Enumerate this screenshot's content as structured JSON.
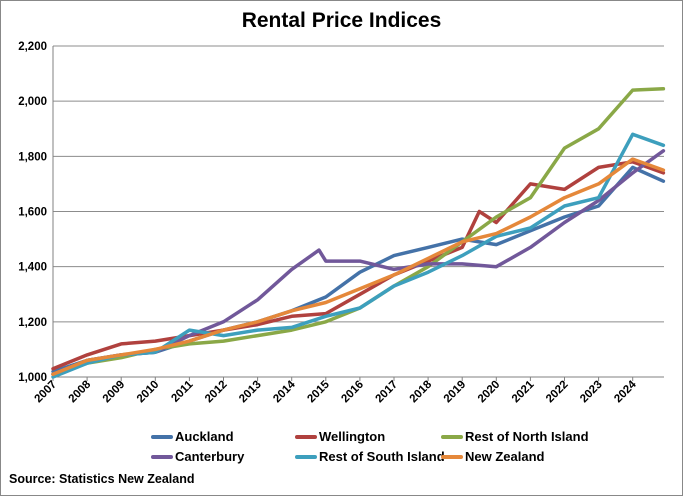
{
  "chart_data": {
    "type": "line",
    "title": "Rental Price Indices",
    "xlabel": "",
    "ylabel": "",
    "ylim": [
      1000,
      2200
    ],
    "yticks": [
      "1,000",
      "1,200",
      "1,400",
      "1,600",
      "1,800",
      "2,000",
      "2,200"
    ],
    "xlim": [
      2007,
      2024.9
    ],
    "xticks": [
      "2007",
      "2008",
      "2009",
      "2010",
      "2011",
      "2012",
      "2013",
      "2014",
      "2015",
      "2016",
      "2017",
      "2018",
      "2019",
      "2020",
      "2021",
      "2022",
      "2023",
      "2024"
    ],
    "grid": "horizontal",
    "legend_position": "bottom",
    "source": "Source:  Statistics New Zealand",
    "series": [
      {
        "name": "Auckland",
        "color": "#4472a8",
        "points": [
          [
            2007,
            1020
          ],
          [
            2008,
            1060
          ],
          [
            2009,
            1080
          ],
          [
            2010,
            1090
          ],
          [
            2011,
            1130
          ],
          [
            2012,
            1170
          ],
          [
            2013,
            1200
          ],
          [
            2014,
            1240
          ],
          [
            2015,
            1290
          ],
          [
            2016,
            1380
          ],
          [
            2017,
            1440
          ],
          [
            2018,
            1470
          ],
          [
            2019,
            1500
          ],
          [
            2020,
            1480
          ],
          [
            2021,
            1530
          ],
          [
            2022,
            1580
          ],
          [
            2023,
            1620
          ],
          [
            2024,
            1760
          ],
          [
            2024.9,
            1710
          ]
        ]
      },
      {
        "name": "Wellington",
        "color": "#b0413e",
        "points": [
          [
            2007,
            1030
          ],
          [
            2008,
            1080
          ],
          [
            2009,
            1120
          ],
          [
            2010,
            1130
          ],
          [
            2011,
            1150
          ],
          [
            2012,
            1170
          ],
          [
            2013,
            1190
          ],
          [
            2014,
            1220
          ],
          [
            2015,
            1230
          ],
          [
            2016,
            1300
          ],
          [
            2017,
            1370
          ],
          [
            2018,
            1420
          ],
          [
            2019,
            1470
          ],
          [
            2019.5,
            1600
          ],
          [
            2020,
            1560
          ],
          [
            2021,
            1700
          ],
          [
            2022,
            1680
          ],
          [
            2023,
            1760
          ],
          [
            2024,
            1780
          ],
          [
            2024.9,
            1740
          ]
        ]
      },
      {
        "name": "Rest of North Island",
        "color": "#8aa847",
        "points": [
          [
            2007,
            1010
          ],
          [
            2008,
            1050
          ],
          [
            2009,
            1070
          ],
          [
            2010,
            1100
          ],
          [
            2011,
            1120
          ],
          [
            2012,
            1130
          ],
          [
            2013,
            1150
          ],
          [
            2014,
            1170
          ],
          [
            2015,
            1200
          ],
          [
            2016,
            1250
          ],
          [
            2017,
            1330
          ],
          [
            2018,
            1400
          ],
          [
            2019,
            1490
          ],
          [
            2020,
            1580
          ],
          [
            2021,
            1650
          ],
          [
            2022,
            1830
          ],
          [
            2023,
            1900
          ],
          [
            2024,
            2040
          ],
          [
            2024.9,
            2045
          ]
        ]
      },
      {
        "name": "Canterbury",
        "color": "#71589a",
        "points": [
          [
            2007,
            1010
          ],
          [
            2008,
            1060
          ],
          [
            2009,
            1080
          ],
          [
            2010,
            1090
          ],
          [
            2011,
            1150
          ],
          [
            2012,
            1200
          ],
          [
            2013,
            1280
          ],
          [
            2014,
            1390
          ],
          [
            2014.8,
            1460
          ],
          [
            2015,
            1420
          ],
          [
            2016,
            1420
          ],
          [
            2017,
            1390
          ],
          [
            2018,
            1410
          ],
          [
            2019,
            1410
          ],
          [
            2020,
            1400
          ],
          [
            2021,
            1470
          ],
          [
            2022,
            1560
          ],
          [
            2023,
            1640
          ],
          [
            2024,
            1740
          ],
          [
            2024.9,
            1820
          ]
        ]
      },
      {
        "name": "Rest of South Island",
        "color": "#3d9fbd",
        "points": [
          [
            2007,
            1000
          ],
          [
            2008,
            1050
          ],
          [
            2009,
            1080
          ],
          [
            2010,
            1090
          ],
          [
            2011,
            1170
          ],
          [
            2012,
            1150
          ],
          [
            2013,
            1170
          ],
          [
            2014,
            1180
          ],
          [
            2015,
            1220
          ],
          [
            2016,
            1250
          ],
          [
            2017,
            1330
          ],
          [
            2018,
            1380
          ],
          [
            2019,
            1440
          ],
          [
            2020,
            1510
          ],
          [
            2021,
            1540
          ],
          [
            2022,
            1620
          ],
          [
            2023,
            1650
          ],
          [
            2024,
            1880
          ],
          [
            2024.9,
            1840
          ]
        ]
      },
      {
        "name": "New Zealand",
        "color": "#e5883a",
        "points": [
          [
            2007,
            1010
          ],
          [
            2008,
            1060
          ],
          [
            2009,
            1080
          ],
          [
            2010,
            1100
          ],
          [
            2011,
            1130
          ],
          [
            2012,
            1170
          ],
          [
            2013,
            1200
          ],
          [
            2014,
            1240
          ],
          [
            2015,
            1270
          ],
          [
            2016,
            1320
          ],
          [
            2017,
            1370
          ],
          [
            2018,
            1430
          ],
          [
            2019,
            1490
          ],
          [
            2020,
            1520
          ],
          [
            2021,
            1580
          ],
          [
            2022,
            1650
          ],
          [
            2023,
            1700
          ],
          [
            2024,
            1790
          ],
          [
            2024.9,
            1750
          ]
        ]
      }
    ]
  }
}
